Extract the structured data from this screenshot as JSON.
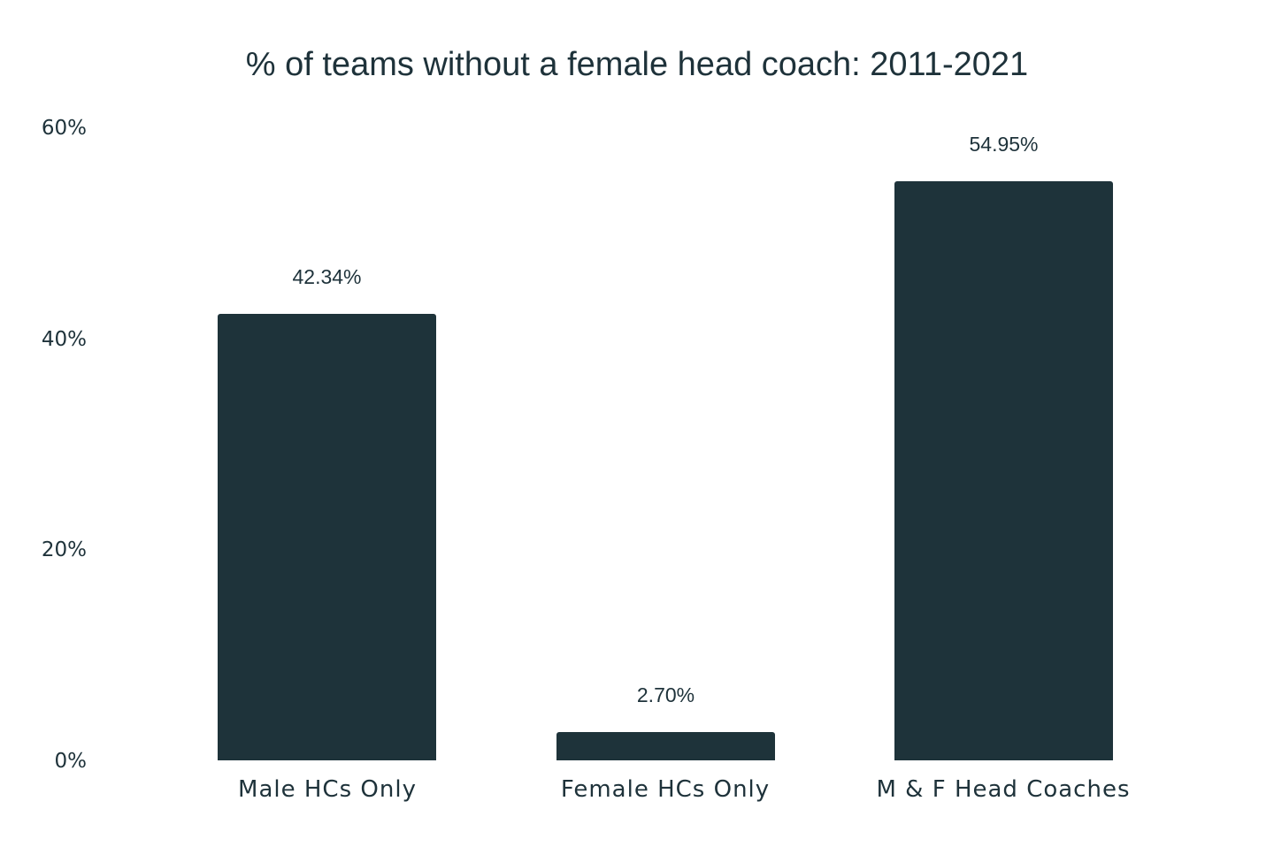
{
  "chart_data": {
    "type": "bar",
    "title": "% of teams without a female head coach: 2011-2021",
    "xlabel": "",
    "ylabel": "",
    "categories": [
      "Male HCs Only",
      "Female HCs Only",
      "M & F Head Coaches"
    ],
    "values": [
      42.34,
      2.7,
      54.95
    ],
    "value_labels": [
      "42.34%",
      "2.70%",
      "54.95%"
    ],
    "ylim": [
      0,
      60
    ],
    "yticks": [
      0,
      20,
      40,
      60
    ],
    "ytick_labels": [
      "0%",
      "20%",
      "40%",
      "60%"
    ],
    "grid": false,
    "legend": null,
    "bar_color": "#1e333a"
  }
}
